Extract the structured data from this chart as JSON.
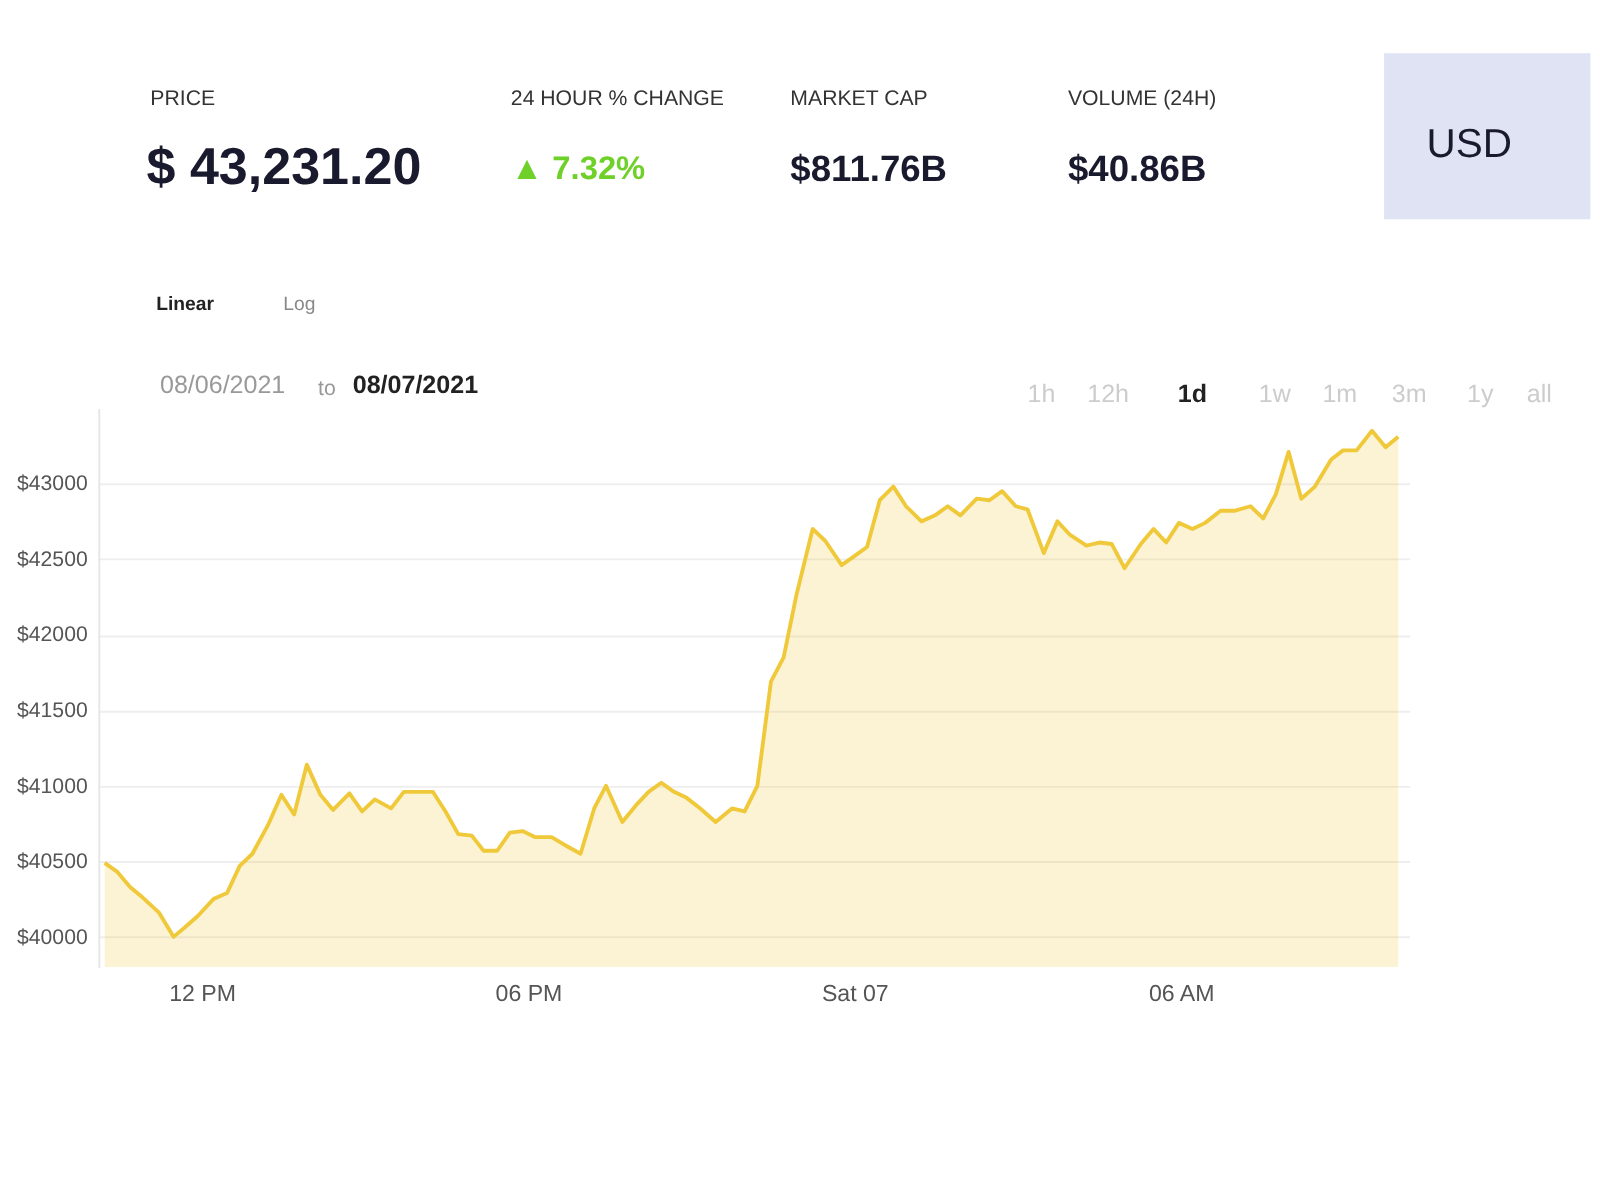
{
  "chart_data": {
    "type": "area",
    "grid": "y",
    "annotations": [
      "PRICE",
      "$ 43,231.20",
      "24 HOUR % CHANGE",
      "▲ 7.32%",
      "MARKET CAP",
      "$811.76B",
      "VOLUME (24H)",
      "$40.86B",
      "USD",
      "Linear",
      "Log",
      "08/06/2021",
      "to",
      "08/07/2021",
      "1h",
      "12h",
      "1d",
      "1w",
      "1m",
      "3m",
      "1y",
      "all"
    ],
    "xlim": [
      "2021-08-06T10:06",
      "2021-08-07T10:12"
    ],
    "ylim": [
      39800,
      43500
    ],
    "xticks": [
      {
        "value": "2021-08-06T12:00",
        "label": "12 PM"
      },
      {
        "value": "2021-08-06T18:00",
        "label": "06 PM"
      },
      {
        "value": "2021-08-07T00:00",
        "label": "Sat 07"
      },
      {
        "value": "2021-08-07T06:00",
        "label": "06 AM"
      }
    ],
    "yticks": [
      {
        "value": 40000,
        "label": "$40000"
      },
      {
        "value": 40500,
        "label": "$40500"
      },
      {
        "value": 41000,
        "label": "$41000"
      },
      {
        "value": 41500,
        "label": "$41500"
      },
      {
        "value": 42000,
        "label": "$42000"
      },
      {
        "value": 42500,
        "label": "$42500"
      },
      {
        "value": 43000,
        "label": "$43000"
      }
    ],
    "x": [
      "2021-08-06T10:13",
      "2021-08-06T10:27",
      "2021-08-06T10:41",
      "2021-08-06T10:55",
      "2021-08-06T11:13",
      "2021-08-06T11:29",
      "2021-08-06T11:41",
      "2021-08-06T11:56",
      "2021-08-06T12:13",
      "2021-08-06T12:28",
      "2021-08-06T12:42",
      "2021-08-06T12:56",
      "2021-08-06T13:14",
      "2021-08-06T13:28",
      "2021-08-06T13:42",
      "2021-08-06T13:56",
      "2021-08-06T14:11",
      "2021-08-06T14:25",
      "2021-08-06T14:43",
      "2021-08-06T14:57",
      "2021-08-06T15:11",
      "2021-08-06T15:29",
      "2021-08-06T15:43",
      "2021-08-06T15:57",
      "2021-08-06T16:15",
      "2021-08-06T16:29",
      "2021-08-06T16:43",
      "2021-08-06T16:58",
      "2021-08-06T17:11",
      "2021-08-06T17:26",
      "2021-08-06T17:40",
      "2021-08-06T17:54",
      "2021-08-06T18:08",
      "2021-08-06T18:26",
      "2021-08-06T18:40",
      "2021-08-06T18:58",
      "2021-08-06T19:13",
      "2021-08-06T19:26",
      "2021-08-06T19:44",
      "2021-08-06T19:59",
      "2021-08-06T20:13",
      "2021-08-06T20:27",
      "2021-08-06T20:41",
      "2021-08-06T20:55",
      "2021-08-06T21:10",
      "2021-08-06T21:27",
      "2021-08-06T21:45",
      "2021-08-06T21:59",
      "2021-08-06T22:13",
      "2021-08-06T22:28",
      "2021-08-06T22:42",
      "2021-08-06T22:56",
      "2021-08-06T23:14",
      "2021-08-06T23:28",
      "2021-08-06T23:46",
      "2021-08-07T00:00",
      "2021-08-07T00:14",
      "2021-08-07T00:28",
      "2021-08-07T00:43",
      "2021-08-07T00:57",
      "2021-08-07T01:14",
      "2021-08-07T01:29",
      "2021-08-07T01:43",
      "2021-08-07T01:57",
      "2021-08-07T02:15",
      "2021-08-07T02:29",
      "2021-08-07T02:43",
      "2021-08-07T02:58",
      "2021-08-07T03:11",
      "2021-08-07T03:29",
      "2021-08-07T03:44",
      "2021-08-07T03:58",
      "2021-08-07T04:16",
      "2021-08-07T04:30",
      "2021-08-07T04:44",
      "2021-08-07T04:58",
      "2021-08-07T05:16",
      "2021-08-07T05:30",
      "2021-08-07T05:44",
      "2021-08-07T05:58",
      "2021-08-07T06:13",
      "2021-08-07T06:27",
      "2021-08-07T06:44",
      "2021-08-07T06:59",
      "2021-08-07T07:17",
      "2021-08-07T07:31",
      "2021-08-07T07:45",
      "2021-08-07T07:59",
      "2021-08-07T08:13",
      "2021-08-07T08:28",
      "2021-08-07T08:46",
      "2021-08-07T08:59",
      "2021-08-07T09:14",
      "2021-08-07T09:31",
      "2021-08-07T09:46",
      "2021-08-07T10:00"
    ],
    "series": [
      {
        "color": "#f0c93a",
        "values": [
          40490,
          40430,
          40330,
          40260,
          40160,
          40000,
          40060,
          40140,
          40250,
          40290,
          40470,
          40550,
          40750,
          40940,
          40810,
          41140,
          40940,
          40840,
          40950,
          40830,
          40910,
          40850,
          40960,
          40960,
          40960,
          40830,
          40680,
          40670,
          40570,
          40570,
          40690,
          40700,
          40660,
          40660,
          40610,
          40550,
          40850,
          41000,
          40760,
          40870,
          40960,
          41020,
          40960,
          40920,
          40850,
          40760,
          40850,
          40830,
          41000,
          41690,
          41850,
          42260,
          42700,
          42620,
          42460,
          42520,
          42580,
          42890,
          42980,
          42850,
          42750,
          42790,
          42850,
          42790,
          42900,
          42890,
          42950,
          42850,
          42830,
          42540,
          42750,
          42660,
          42590,
          42610,
          42600,
          42440,
          42600,
          42700,
          42610,
          42740,
          42700,
          42740,
          42820,
          42820,
          42850,
          42770,
          42930,
          43210,
          42900,
          42980,
          43160,
          43220,
          43220,
          43350,
          43240,
          43310
        ]
      }
    ]
  }
}
